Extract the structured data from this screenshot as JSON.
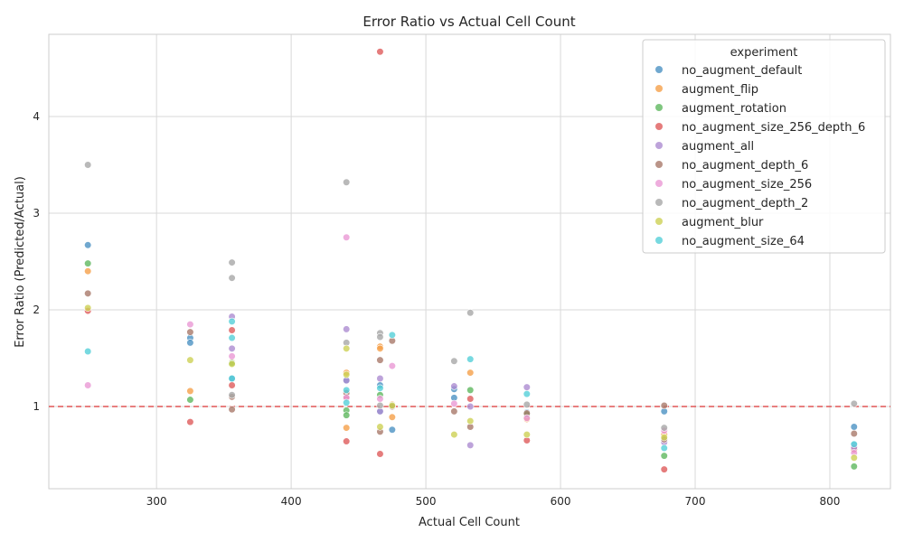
{
  "chart_data": {
    "type": "scatter",
    "title": "Error Ratio vs Actual Cell Count",
    "xlabel": "Actual Cell Count",
    "ylabel": "Error Ratio (Predicted/Actual)",
    "xlim": [
      220,
      845
    ],
    "ylim": [
      0.15,
      4.85
    ],
    "xticks": [
      300,
      400,
      500,
      600,
      700,
      800
    ],
    "yticks": [
      1,
      2,
      3,
      4
    ],
    "grid": true,
    "reference_line": {
      "y": 1.0,
      "color": "#e05555",
      "style": "dashed"
    },
    "legend": {
      "title": "experiment",
      "placement": "top-right"
    },
    "series": [
      {
        "name": "no_augment_default",
        "color": "#4c92c3",
        "points": [
          [
            249,
            2.67
          ],
          [
            325,
            1.71
          ],
          [
            325,
            1.66
          ],
          [
            356,
            1.29
          ],
          [
            441,
            1.27
          ],
          [
            466,
            1.22
          ],
          [
            466,
            0.95
          ],
          [
            475,
            0.76
          ],
          [
            521,
            1.18
          ],
          [
            521,
            1.09
          ],
          [
            575,
            0.94
          ],
          [
            677,
            0.95
          ],
          [
            818,
            0.79
          ],
          [
            818,
            0.6
          ]
        ]
      },
      {
        "name": "augment_flip",
        "color": "#f5a04a",
        "points": [
          [
            249,
            2.4
          ],
          [
            325,
            1.16
          ],
          [
            356,
            1.46
          ],
          [
            441,
            1.35
          ],
          [
            441,
            0.78
          ],
          [
            466,
            1.62
          ],
          [
            466,
            1.6
          ],
          [
            475,
            1.02
          ],
          [
            475,
            0.89
          ],
          [
            533,
            1.35
          ],
          [
            575,
            0.87
          ],
          [
            677,
            0.71
          ],
          [
            818,
            0.55
          ]
        ]
      },
      {
        "name": "augment_rotation",
        "color": "#5fb85f",
        "points": [
          [
            249,
            2.48
          ],
          [
            325,
            1.07
          ],
          [
            356,
            1.45
          ],
          [
            441,
            0.96
          ],
          [
            441,
            0.91
          ],
          [
            466,
            1.12
          ],
          [
            475,
            1.01
          ],
          [
            533,
            1.17
          ],
          [
            575,
            0.92
          ],
          [
            677,
            0.49
          ],
          [
            818,
            0.38
          ]
        ]
      },
      {
        "name": "no_augment_size_256_depth_6",
        "color": "#df5b5b",
        "points": [
          [
            249,
            1.99
          ],
          [
            325,
            0.84
          ],
          [
            356,
            1.79
          ],
          [
            356,
            1.22
          ],
          [
            441,
            1.1
          ],
          [
            441,
            0.64
          ],
          [
            466,
            4.67
          ],
          [
            466,
            0.51
          ],
          [
            533,
            1.08
          ],
          [
            575,
            0.65
          ],
          [
            677,
            0.35
          ],
          [
            818,
            0.56
          ]
        ]
      },
      {
        "name": "augment_all",
        "color": "#ac8cd1",
        "points": [
          [
            356,
            1.93
          ],
          [
            356,
            1.6
          ],
          [
            441,
            1.8
          ],
          [
            441,
            1.27
          ],
          [
            466,
            1.29
          ],
          [
            466,
            0.95
          ],
          [
            521,
            1.21
          ],
          [
            533,
            1.0
          ],
          [
            533,
            0.6
          ],
          [
            575,
            1.2
          ],
          [
            677,
            0.63
          ],
          [
            818,
            0.58
          ]
        ]
      },
      {
        "name": "no_augment_depth_6",
        "color": "#a9796a",
        "points": [
          [
            249,
            2.17
          ],
          [
            325,
            1.77
          ],
          [
            356,
            1.1
          ],
          [
            356,
            0.97
          ],
          [
            441,
            1.14
          ],
          [
            466,
            1.48
          ],
          [
            466,
            0.74
          ],
          [
            475,
            1.68
          ],
          [
            475,
            1.0
          ],
          [
            521,
            0.95
          ],
          [
            533,
            0.79
          ],
          [
            575,
            0.93
          ],
          [
            677,
            1.01
          ],
          [
            677,
            0.66
          ],
          [
            818,
            0.72
          ]
        ]
      },
      {
        "name": "no_augment_size_256",
        "color": "#ea98d4",
        "points": [
          [
            249,
            1.22
          ],
          [
            325,
            1.85
          ],
          [
            356,
            1.52
          ],
          [
            441,
            2.75
          ],
          [
            441,
            1.09
          ],
          [
            466,
            1.08
          ],
          [
            475,
            1.42
          ],
          [
            521,
            1.03
          ],
          [
            575,
            0.88
          ],
          [
            677,
            0.75
          ],
          [
            818,
            0.52
          ]
        ]
      },
      {
        "name": "no_augment_depth_2",
        "color": "#a7a7a7",
        "points": [
          [
            249,
            3.5
          ],
          [
            356,
            2.49
          ],
          [
            356,
            2.33
          ],
          [
            356,
            1.12
          ],
          [
            441,
            3.32
          ],
          [
            441,
            1.66
          ],
          [
            466,
            1.76
          ],
          [
            466,
            1.72
          ],
          [
            466,
            1.01
          ],
          [
            521,
            1.47
          ],
          [
            533,
            1.97
          ],
          [
            575,
            1.02
          ],
          [
            677,
            0.78
          ],
          [
            818,
            1.03
          ]
        ]
      },
      {
        "name": "augment_blur",
        "color": "#cdd155",
        "points": [
          [
            249,
            2.02
          ],
          [
            325,
            1.48
          ],
          [
            356,
            1.44
          ],
          [
            441,
            1.6
          ],
          [
            441,
            1.33
          ],
          [
            466,
            0.79
          ],
          [
            475,
            1.01
          ],
          [
            521,
            0.71
          ],
          [
            533,
            0.85
          ],
          [
            575,
            0.71
          ],
          [
            677,
            0.68
          ],
          [
            818,
            0.47
          ]
        ]
      },
      {
        "name": "no_augment_size_64",
        "color": "#55cfd8",
        "points": [
          [
            249,
            1.57
          ],
          [
            356,
            1.88
          ],
          [
            356,
            1.71
          ],
          [
            356,
            1.29
          ],
          [
            441,
            1.17
          ],
          [
            441,
            1.04
          ],
          [
            466,
            1.19
          ],
          [
            475,
            1.74
          ],
          [
            533,
            1.49
          ],
          [
            575,
            1.13
          ],
          [
            677,
            0.57
          ],
          [
            818,
            0.61
          ]
        ]
      }
    ]
  }
}
